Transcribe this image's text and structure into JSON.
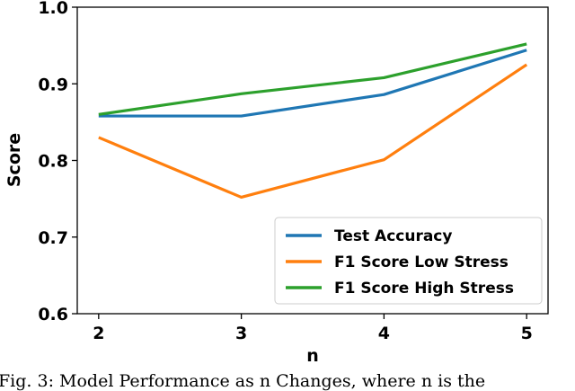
{
  "chart_data": {
    "type": "line",
    "x": [
      2,
      3,
      4,
      5
    ],
    "series": [
      {
        "name": "Test Accuracy",
        "color": "#1f77b4",
        "values": [
          0.858,
          0.858,
          0.886,
          0.944
        ]
      },
      {
        "name": "F1 Score Low Stress",
        "color": "#ff7f0e",
        "values": [
          0.83,
          0.752,
          0.801,
          0.925
        ]
      },
      {
        "name": "F1 Score High Stress",
        "color": "#2ca02c",
        "values": [
          0.86,
          0.887,
          0.908,
          0.952
        ]
      }
    ],
    "xlabel": "n",
    "ylabel": "Score",
    "xlim": [
      1.85,
      5.15
    ],
    "ylim": [
      0.6,
      1.0
    ],
    "xticks": [
      "2",
      "3",
      "4",
      "5"
    ],
    "yticks": [
      "0.6",
      "0.7",
      "0.8",
      "0.9",
      "1.0"
    ],
    "legend_position": "lower-right",
    "grid": false
  },
  "caption": "Fig. 3: Model Performance as n Changes, where n is the"
}
